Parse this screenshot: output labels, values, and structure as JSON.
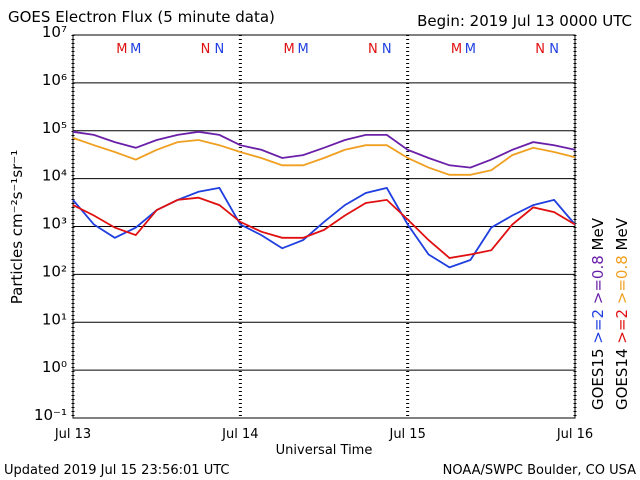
{
  "chart_data": {
    "type": "line",
    "title": "GOES Electron Flux (5 minute data)",
    "begin": "Begin: 2019 Jul 13 0000 UTC",
    "xlabel": "Universal Time",
    "ylabel": "Particles cm⁻²s⁻¹sr⁻¹",
    "updated": "Updated 2019 Jul 15 23:56:01 UTC",
    "credit": "NOAA/SWPC Boulder, CO USA",
    "log_scale": true,
    "grid": true,
    "threshold": 1000,
    "xlim": [
      0,
      72
    ],
    "xticks": [
      {
        "value": 0,
        "label": "Jul 13"
      },
      {
        "value": 24,
        "label": "Jul 14"
      },
      {
        "value": 48,
        "label": "Jul 15"
      },
      {
        "value": 72,
        "label": "Jul 16"
      }
    ],
    "ylim": [
      0.1,
      10000000
    ],
    "yticks": [
      {
        "value": 0.1,
        "label": "10⁻¹"
      },
      {
        "value": 1,
        "label": "10⁰"
      },
      {
        "value": 10,
        "label": "10¹"
      },
      {
        "value": 100,
        "label": "10²"
      },
      {
        "value": 1000,
        "label": "10³"
      },
      {
        "value": 10000,
        "label": "10⁴"
      },
      {
        "value": 100000,
        "label": "10⁵"
      },
      {
        "value": 1000000,
        "label": "10⁶"
      },
      {
        "value": 10000000,
        "label": "10⁷"
      }
    ],
    "unit": "MeV",
    "x": [
      0,
      3,
      6,
      9,
      12,
      15,
      18,
      21,
      24,
      27,
      30,
      33,
      36,
      39,
      42,
      45,
      48,
      51,
      54,
      57,
      60,
      63,
      66,
      69,
      72
    ],
    "series": [
      {
        "satellite": "GOES15",
        "name": ">=2",
        "color": "#1f3fe0",
        "values": [
          3600,
          1100,
          580,
          950,
          2200,
          3600,
          5300,
          6400,
          1100,
          660,
          350,
          520,
          1250,
          2800,
          5000,
          6400,
          1100,
          260,
          140,
          200,
          950,
          1700,
          2800,
          3600,
          1100
        ]
      },
      {
        "satellite": "GOES14",
        "name": ">=2",
        "color": "#e01010",
        "values": [
          2800,
          1700,
          950,
          660,
          2200,
          3600,
          4000,
          2800,
          1250,
          780,
          580,
          580,
          850,
          1700,
          3100,
          3600,
          1400,
          520,
          220,
          260,
          320,
          1100,
          2500,
          2000,
          1100
        ]
      },
      {
        "satellite": "GOES15",
        "name": ">=0.8",
        "color": "#6a1fa8",
        "values": [
          95000,
          82000,
          58000,
          44000,
          64000,
          82000,
          95000,
          82000,
          50000,
          40000,
          27000,
          31000,
          44000,
          64000,
          82000,
          82000,
          40000,
          27000,
          19000,
          17000,
          25000,
          40000,
          58000,
          50000,
          40000
        ]
      },
      {
        "satellite": "GOES14",
        "name": ">=0.8",
        "color": "#f0a020",
        "values": [
          71000,
          50000,
          36000,
          25000,
          40000,
          58000,
          64000,
          50000,
          36000,
          27000,
          19000,
          19000,
          27000,
          40000,
          50000,
          50000,
          27000,
          17000,
          12000,
          12000,
          15000,
          31000,
          44000,
          36000,
          28000
        ]
      }
    ],
    "markers": [
      {
        "label": "M",
        "color": "#e01010",
        "x": [
          7,
          31,
          55
        ]
      },
      {
        "label": "M",
        "color": "#1f3fe0",
        "x": [
          9,
          33,
          57
        ]
      },
      {
        "label": "N",
        "color": "#e01010",
        "x": [
          19,
          43,
          67
        ]
      },
      {
        "label": "N",
        "color": "#1f3fe0",
        "x": [
          21,
          45,
          69
        ]
      }
    ]
  }
}
